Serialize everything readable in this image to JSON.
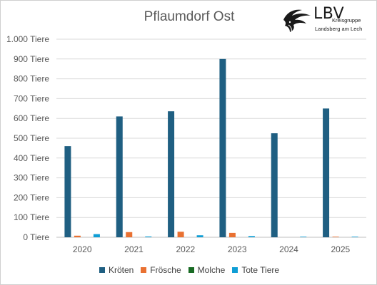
{
  "chart_data": {
    "type": "bar",
    "title": "Pflaumdorf Ost",
    "categories": [
      "2020",
      "2021",
      "2022",
      "2023",
      "2024",
      "2025"
    ],
    "series": [
      {
        "name": "Kröten",
        "values": [
          460,
          610,
          636,
          900,
          525,
          650
        ],
        "color": "#1f5f82"
      },
      {
        "name": "Frösche",
        "values": [
          8,
          26,
          28,
          22,
          0,
          3
        ],
        "color": "#e97132"
      },
      {
        "name": "Molche",
        "values": [
          0,
          0,
          0,
          0,
          0,
          0
        ],
        "color": "#196b24"
      },
      {
        "name": "Tote Tiere",
        "values": [
          16,
          4,
          10,
          6,
          3,
          3
        ],
        "color": "#0f9ed5"
      }
    ],
    "yticks": [
      "0 Tiere",
      "100 Tiere",
      "200 Tiere",
      "300 Tiere",
      "400 Tiere",
      "500 Tiere",
      "600 Tiere",
      "700 Tiere",
      "800 Tiere",
      "900 Tiere",
      "1.000 Tiere"
    ],
    "ylim": [
      0,
      1000
    ],
    "grid": true,
    "legend_position": "bottom"
  },
  "logo": {
    "name": "LBV",
    "line1": "Kreisgruppe",
    "line2": "Landsberg am Lech",
    "icon": "bird-icon"
  }
}
